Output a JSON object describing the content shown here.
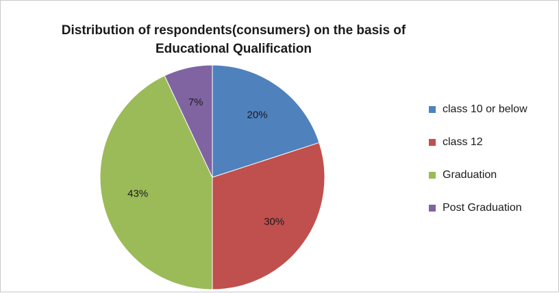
{
  "chart_data": {
    "type": "pie",
    "title_lines": [
      "Distribution of respondents(consumers) on the basis of",
      "Educational Qualification"
    ],
    "categories": [
      "class 10 or below",
      "class 12",
      "Graduation",
      "Post Graduation"
    ],
    "values": [
      20,
      30,
      43,
      7
    ],
    "data_labels": [
      "20%",
      "30%",
      "43%",
      "7%"
    ],
    "colors": [
      "#4f81bd",
      "#c0504d",
      "#9bbb59",
      "#8064a2"
    ],
    "legend_position": "right"
  }
}
